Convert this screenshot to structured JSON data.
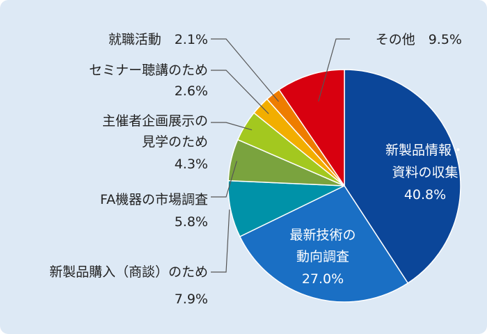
{
  "chart_data": {
    "type": "pie",
    "start": "12 o'clock",
    "direction": "clockwise",
    "slices": [
      {
        "label": "新製品情報・資料の収集",
        "label_lines": [
          "新製品情報・",
          "資料の収集"
        ],
        "value_text": "40.8%",
        "value": 40.8,
        "color": "#0b4699",
        "label_position": "inside"
      },
      {
        "label": "最新技術の動向調査",
        "label_lines": [
          "最新技術の",
          "動向調査"
        ],
        "value_text": "27.0%",
        "value": 27.0,
        "color": "#1a6fc4",
        "label_position": "inside"
      },
      {
        "label": "新製品購入（商談）のため",
        "label_lines": [
          "新製品購入（商談）のため"
        ],
        "value_text": "7.9%",
        "value": 7.9,
        "color": "#0092a8",
        "label_position": "outside"
      },
      {
        "label": "FA機器の市場調査",
        "label_lines": [
          "FA機器の市場調査"
        ],
        "value_text": "5.8%",
        "value": 5.8,
        "color": "#7aa33e",
        "label_position": "outside"
      },
      {
        "label": "主催者企画展示の見学のため",
        "label_lines": [
          "主催者企画展示の",
          "見学のため"
        ],
        "value_text": "4.3%",
        "value": 4.3,
        "color": "#a3c81f",
        "label_position": "outside"
      },
      {
        "label": "セミナー聴講のため",
        "label_lines": [
          "セミナー聴講のため"
        ],
        "value_text": "2.6%",
        "value": 2.6,
        "color": "#f2ae00",
        "label_position": "outside"
      },
      {
        "label": "就職活動",
        "label_lines": [
          "就職活動"
        ],
        "value_text": "2.1%",
        "value": 2.1,
        "color": "#ee7d00",
        "label_position": "outside"
      },
      {
        "label": "その他",
        "label_lines": [
          "その他"
        ],
        "value_text": "9.5%",
        "value": 9.5,
        "color": "#d8000f",
        "label_position": "outside"
      }
    ]
  }
}
